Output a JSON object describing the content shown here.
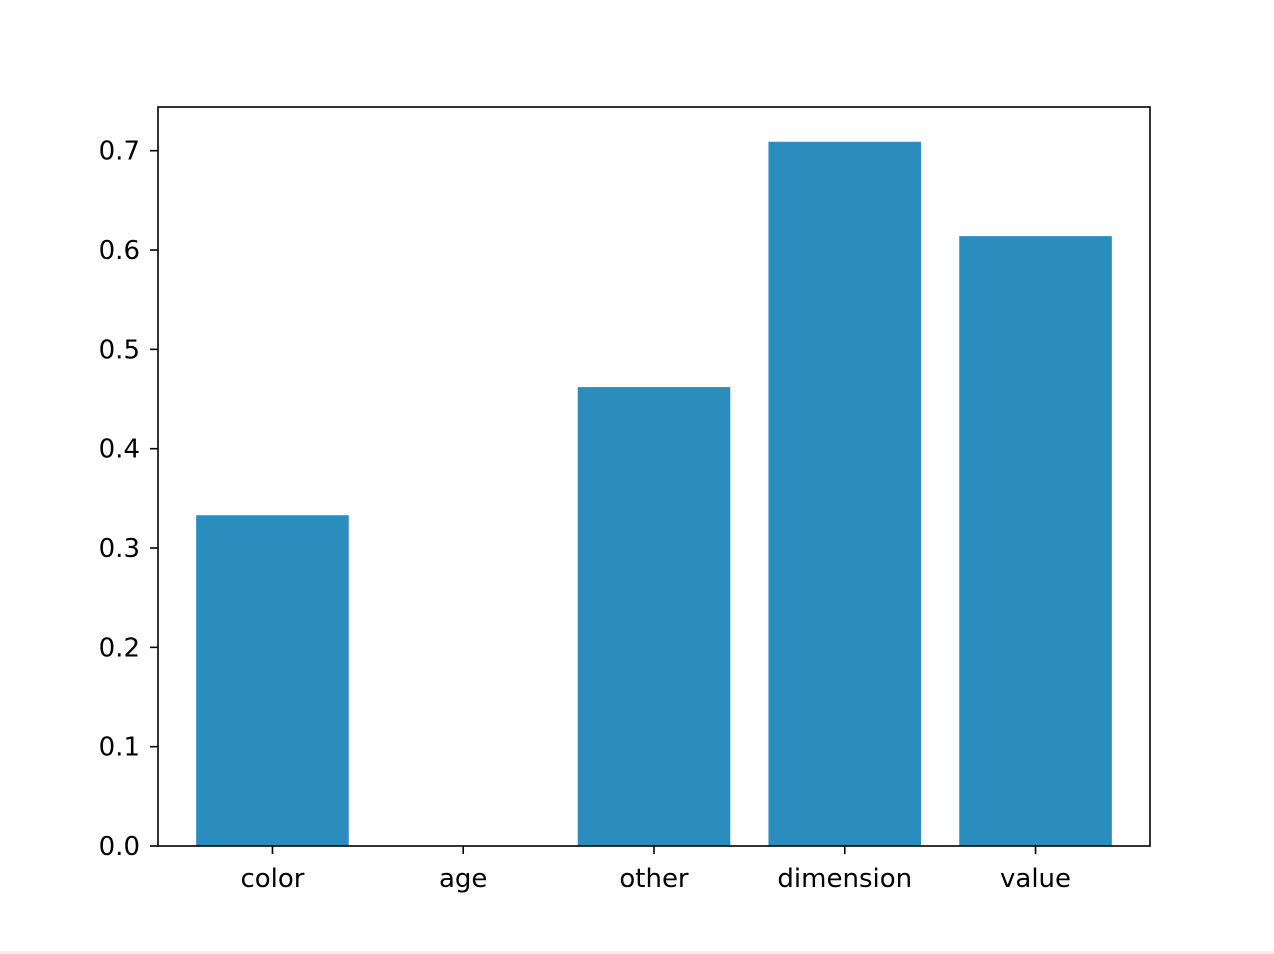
{
  "chart_data": {
    "type": "bar",
    "categories": [
      "color",
      "age",
      "other",
      "dimension",
      "value"
    ],
    "values": [
      0.333,
      0.0,
      0.462,
      0.709,
      0.614
    ],
    "title": "",
    "xlabel": "",
    "ylabel": "",
    "ylim": [
      0,
      0.744
    ],
    "yticks": [
      "0.0",
      "0.1",
      "0.2",
      "0.3",
      "0.4",
      "0.5",
      "0.6",
      "0.7"
    ],
    "bar_color": "#2b8cbe",
    "grid": false,
    "legend": "none"
  }
}
